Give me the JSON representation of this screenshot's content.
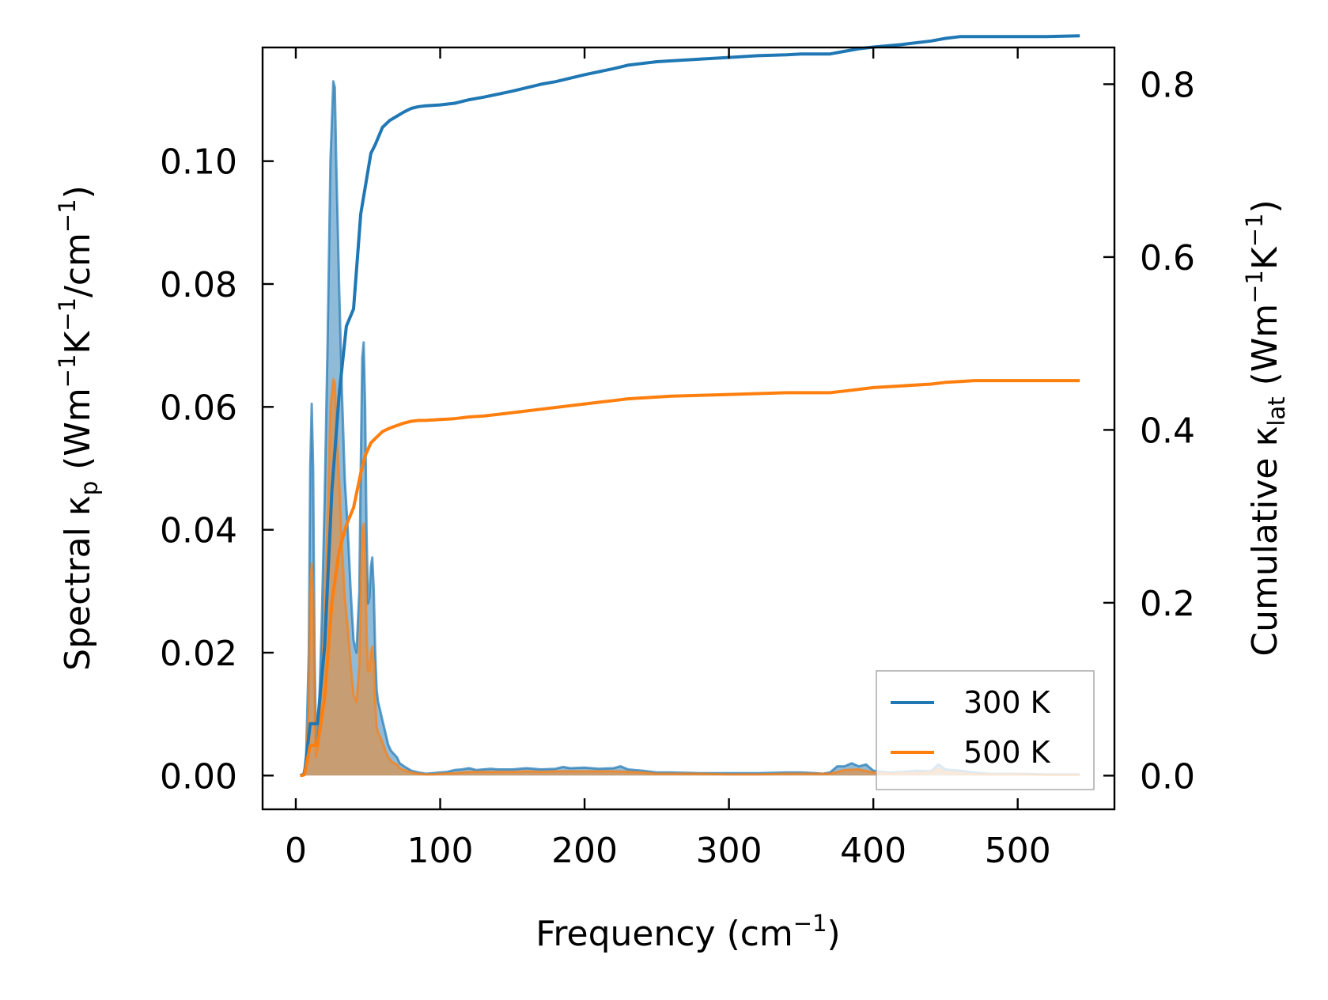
{
  "chart_data": {
    "type": "line",
    "xlabel": {
      "main": "Frequency (cm",
      "sup": "−1",
      "end": ")"
    },
    "ylabel_left": {
      "a": "Spectral κ",
      "sub": "p",
      "b": " (Wm",
      "sup1": "−1",
      "c": "K",
      "sup2": "−1",
      "d": "/cm",
      "sup3": "−1",
      "e": ")"
    },
    "ylabel_right": {
      "a": "Cumulative κ",
      "sub": "lat",
      "b": " (Wm",
      "sup1": "−1",
      "c": "K",
      "sup2": "−1",
      "d": ")"
    },
    "xlim": [
      -23,
      567
    ],
    "ylim_left": [
      -0.0055,
      0.1185
    ],
    "ylim_right": [
      -0.039,
      0.8425
    ],
    "xticks": [
      0,
      100,
      200,
      300,
      400,
      500
    ],
    "xtick_labels": [
      "0",
      "100",
      "200",
      "300",
      "400",
      "500"
    ],
    "yticks_left": [
      0.0,
      0.02,
      0.04,
      0.06,
      0.08,
      0.1
    ],
    "ytick_labels_left": [
      "0.00",
      "0.02",
      "0.04",
      "0.06",
      "0.08",
      "0.10"
    ],
    "yticks_right": [
      0.0,
      0.2,
      0.4,
      0.6,
      0.8
    ],
    "ytick_labels_right": [
      "0.0",
      "0.2",
      "0.4",
      "0.6",
      "0.8"
    ],
    "legend": {
      "location": "lower-right",
      "entries": [
        "300 K",
        "500 K"
      ]
    },
    "colors": {
      "s300": "#1f77b4",
      "s500": "#ff7f0e"
    },
    "series": [
      {
        "name": "300 K",
        "axis": "left",
        "style": "filled-spectral",
        "x": [
          3,
          5,
          7,
          9,
          10,
          11,
          12,
          13,
          14,
          16,
          18,
          20,
          22,
          24,
          26,
          27,
          28,
          30,
          32,
          34,
          36,
          38,
          40,
          42,
          44,
          45,
          46,
          47,
          48,
          49,
          50,
          51,
          52,
          53,
          54,
          55,
          56,
          57,
          58,
          60,
          62,
          64,
          66,
          68,
          70,
          72,
          75,
          80,
          85,
          90,
          95,
          100,
          105,
          110,
          115,
          120,
          125,
          130,
          135,
          140,
          150,
          160,
          170,
          180,
          185,
          190,
          200,
          210,
          220,
          225,
          230,
          240,
          250,
          260,
          280,
          300,
          320,
          340,
          350,
          360,
          365,
          370,
          375,
          380,
          385,
          390,
          395,
          400,
          410,
          420,
          430,
          440,
          445,
          450,
          460,
          470,
          480,
          500,
          520,
          543
        ],
        "y": [
          0.0,
          0.0,
          0.002,
          0.02,
          0.05,
          0.0605,
          0.05,
          0.02,
          0.005,
          0.01,
          0.025,
          0.045,
          0.07,
          0.1,
          0.113,
          0.112,
          0.1,
          0.08,
          0.062,
          0.048,
          0.04,
          0.03,
          0.022,
          0.02,
          0.03,
          0.05,
          0.068,
          0.0705,
          0.06,
          0.04,
          0.028,
          0.029,
          0.034,
          0.0355,
          0.03,
          0.02,
          0.014,
          0.012,
          0.011,
          0.009,
          0.007,
          0.005,
          0.004,
          0.0035,
          0.003,
          0.002,
          0.0015,
          0.0008,
          0.0005,
          0.0003,
          0.0004,
          0.0005,
          0.0006,
          0.0009,
          0.001,
          0.0012,
          0.0009,
          0.001,
          0.0011,
          0.001,
          0.001,
          0.0012,
          0.001,
          0.0011,
          0.0014,
          0.0012,
          0.0013,
          0.0011,
          0.0012,
          0.0015,
          0.001,
          0.0008,
          0.0005,
          0.0005,
          0.0004,
          0.0004,
          0.0004,
          0.0005,
          0.0005,
          0.0004,
          0.0003,
          0.0005,
          0.0015,
          0.0015,
          0.002,
          0.0015,
          0.0018,
          0.0008,
          0.0005,
          0.0006,
          0.0008,
          0.0007,
          0.0018,
          0.001,
          0.0008,
          0.0005,
          0.0003,
          0.0003,
          0.0002,
          0.0002
        ]
      },
      {
        "name": "500 K",
        "axis": "left",
        "style": "filled-spectral",
        "x": [
          3,
          5,
          7,
          9,
          10,
          11,
          12,
          13,
          14,
          16,
          18,
          20,
          22,
          24,
          26,
          27,
          28,
          30,
          32,
          34,
          36,
          38,
          40,
          42,
          44,
          45,
          46,
          47,
          48,
          49,
          50,
          51,
          52,
          53,
          54,
          55,
          56,
          57,
          58,
          60,
          62,
          64,
          66,
          68,
          70,
          72,
          75,
          80,
          85,
          90,
          95,
          100,
          110,
          120,
          130,
          140,
          150,
          160,
          170,
          180,
          190,
          200,
          210,
          220,
          230,
          240,
          250,
          260,
          280,
          300,
          320,
          340,
          360,
          370,
          380,
          390,
          400,
          410,
          420,
          430,
          440,
          445,
          450,
          460,
          470,
          480,
          500,
          520,
          543
        ],
        "y": [
          0.0,
          0.0,
          0.001,
          0.012,
          0.03,
          0.0345,
          0.03,
          0.012,
          0.003,
          0.006,
          0.015,
          0.027,
          0.042,
          0.06,
          0.0645,
          0.064,
          0.058,
          0.048,
          0.037,
          0.029,
          0.024,
          0.018,
          0.013,
          0.012,
          0.018,
          0.03,
          0.04,
          0.041,
          0.036,
          0.024,
          0.017,
          0.017,
          0.02,
          0.021,
          0.018,
          0.012,
          0.008,
          0.007,
          0.0065,
          0.0055,
          0.004,
          0.003,
          0.0024,
          0.002,
          0.0018,
          0.0012,
          0.0009,
          0.0005,
          0.0003,
          0.0002,
          0.0002,
          0.0003,
          0.0004,
          0.0006,
          0.0006,
          0.0006,
          0.0006,
          0.0007,
          0.0006,
          0.0007,
          0.0007,
          0.0007,
          0.0007,
          0.0007,
          0.0006,
          0.0005,
          0.0003,
          0.0003,
          0.0003,
          0.0002,
          0.0002,
          0.0003,
          0.0003,
          0.0003,
          0.0009,
          0.001,
          0.0005,
          0.0003,
          0.0004,
          0.0004,
          0.0005,
          0.0011,
          0.0006,
          0.0004,
          0.0002,
          0.0002,
          0.0002,
          0.0001,
          0.0001
        ]
      },
      {
        "name": "300 K",
        "axis": "right",
        "style": "line",
        "x": [
          3,
          6,
          10,
          15,
          20,
          25,
          30,
          35,
          40,
          45,
          48,
          52,
          55,
          60,
          65,
          70,
          75,
          80,
          85,
          90,
          100,
          110,
          120,
          130,
          150,
          170,
          180,
          190,
          200,
          220,
          230,
          240,
          250,
          260,
          280,
          300,
          320,
          340,
          350,
          360,
          370,
          380,
          390,
          400,
          420,
          440,
          450,
          460,
          470,
          480,
          500,
          520,
          543
        ],
        "y": [
          0.0,
          0.002,
          0.06,
          0.06,
          0.15,
          0.33,
          0.44,
          0.52,
          0.54,
          0.65,
          0.68,
          0.72,
          0.73,
          0.75,
          0.758,
          0.763,
          0.768,
          0.772,
          0.774,
          0.775,
          0.776,
          0.778,
          0.782,
          0.785,
          0.792,
          0.8,
          0.803,
          0.807,
          0.811,
          0.818,
          0.822,
          0.824,
          0.826,
          0.827,
          0.829,
          0.831,
          0.833,
          0.834,
          0.835,
          0.835,
          0.835,
          0.838,
          0.841,
          0.843,
          0.846,
          0.85,
          0.853,
          0.855,
          0.855,
          0.855,
          0.855,
          0.855,
          0.856
        ]
      },
      {
        "name": "500 K",
        "axis": "right",
        "style": "line",
        "x": [
          3,
          6,
          10,
          15,
          20,
          25,
          30,
          35,
          40,
          45,
          48,
          52,
          55,
          60,
          65,
          70,
          75,
          80,
          85,
          90,
          100,
          110,
          120,
          130,
          150,
          170,
          180,
          190,
          200,
          220,
          230,
          240,
          250,
          260,
          280,
          300,
          320,
          340,
          350,
          360,
          370,
          380,
          390,
          400,
          420,
          440,
          450,
          460,
          470,
          480,
          500,
          520,
          543
        ],
        "y": [
          0.0,
          0.001,
          0.035,
          0.035,
          0.09,
          0.2,
          0.26,
          0.29,
          0.31,
          0.35,
          0.37,
          0.385,
          0.39,
          0.398,
          0.402,
          0.405,
          0.408,
          0.41,
          0.411,
          0.411,
          0.412,
          0.413,
          0.415,
          0.416,
          0.42,
          0.424,
          0.426,
          0.428,
          0.43,
          0.434,
          0.436,
          0.437,
          0.438,
          0.439,
          0.44,
          0.441,
          0.442,
          0.443,
          0.443,
          0.443,
          0.443,
          0.445,
          0.447,
          0.449,
          0.451,
          0.453,
          0.455,
          0.456,
          0.457,
          0.457,
          0.457,
          0.457,
          0.457
        ]
      }
    ]
  }
}
